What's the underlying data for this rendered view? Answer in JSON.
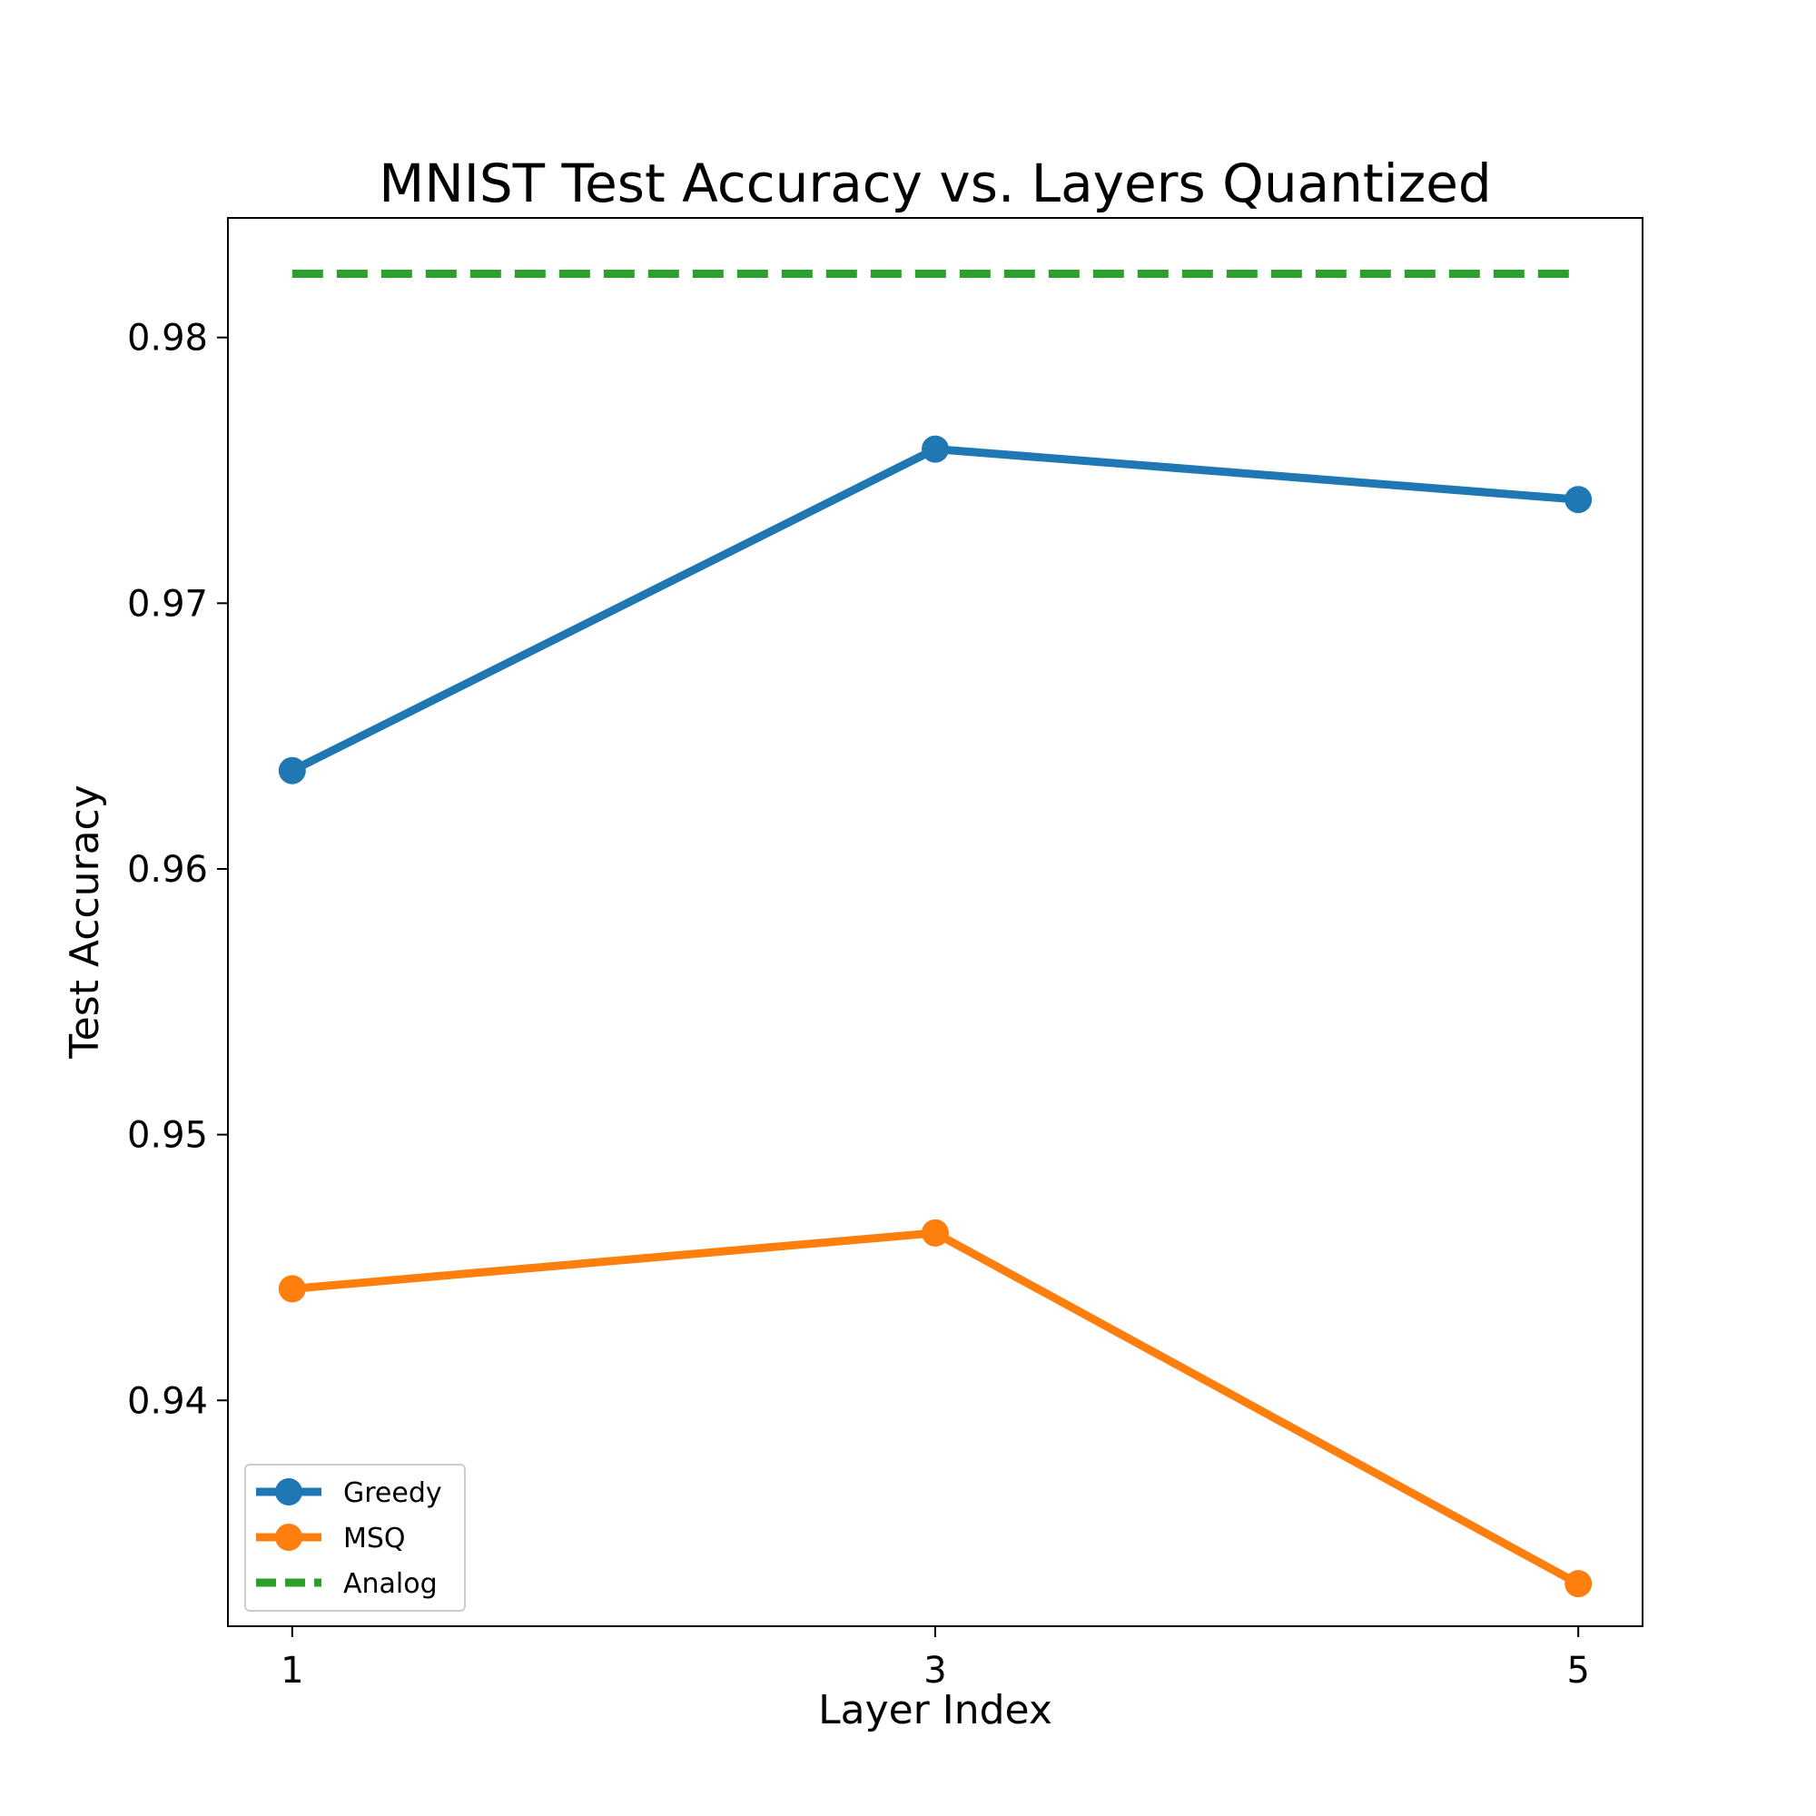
{
  "chart_data": {
    "type": "line",
    "title": "MNIST Test Accuracy vs. Layers Quantized",
    "xlabel": "Layer Index",
    "ylabel": "Test Accuracy",
    "x": [
      1,
      3,
      5
    ],
    "xticks": [
      "1",
      "3",
      "5"
    ],
    "xlim": [
      0.8,
      5.2
    ],
    "yticks": [
      0.94,
      0.95,
      0.96,
      0.97,
      0.98
    ],
    "ytick_labels": [
      "0.94",
      "0.95",
      "0.96",
      "0.97",
      "0.98"
    ],
    "ylim": [
      0.9315,
      0.9845
    ],
    "grid": false,
    "legend_position": "lower-left",
    "series": [
      {
        "name": "Greedy",
        "values": [
          0.9637,
          0.9758,
          0.9739
        ],
        "color": "#1f77b4",
        "style": "solid",
        "marker": "circle"
      },
      {
        "name": "MSQ",
        "values": [
          0.9442,
          0.9463,
          0.9331
        ],
        "color": "#ff7f0e",
        "style": "solid",
        "marker": "circle"
      },
      {
        "name": "Analog",
        "values": [
          0.9824,
          0.9824,
          0.9824
        ],
        "color": "#2ca02c",
        "style": "dashed",
        "marker": "none"
      }
    ]
  }
}
